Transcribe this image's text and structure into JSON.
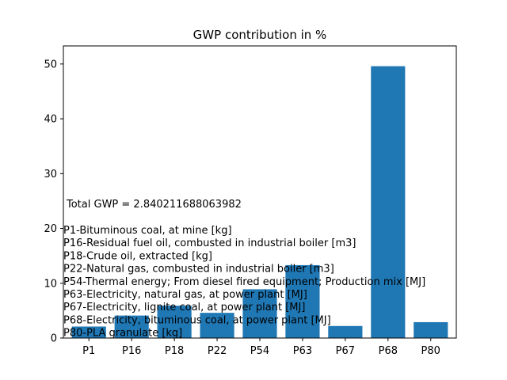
{
  "chart_data": {
    "type": "bar",
    "title": "GWP contribution in %",
    "xlabel": "",
    "ylabel": "",
    "categories": [
      "P1",
      "P16",
      "P18",
      "P22",
      "P54",
      "P63",
      "P67",
      "P68",
      "P80"
    ],
    "values": [
      2.1,
      4.1,
      5.9,
      4.6,
      8.9,
      13.3,
      2.2,
      49.6,
      2.9
    ],
    "ylim": [
      0,
      53.3
    ],
    "yticks": [
      0,
      10,
      20,
      30,
      40,
      50
    ],
    "grid": false,
    "bar_color": "#1f77b4",
    "annotation": {
      "total": "Total GWP = 2.840211688063982",
      "legend_lines": [
        "P1-Bituminous coal, at mine [kg]",
        "P16-Residual fuel oil, combusted in industrial boiler [m3]",
        "P18-Crude oil, extracted [kg]",
        "P22-Natural gas, combusted in industrial boiler [m3]",
        "P54-Thermal energy; From diesel fired equipment; Production mix [MJ]",
        "P63-Electricity, natural gas, at power plant [MJ]",
        "P67-Electricity, lignite coal, at power plant [MJ]",
        "P68-Electricity, bituminous coal, at power plant [MJ]",
        "P80-PLA granulate [kg]"
      ]
    }
  }
}
